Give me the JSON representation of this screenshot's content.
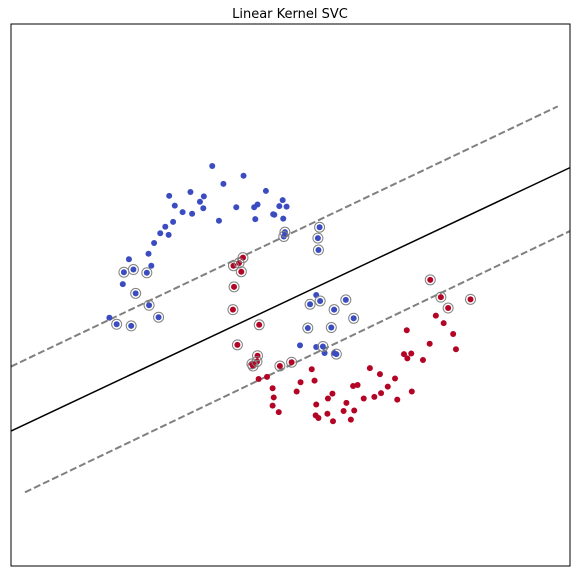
{
  "chart_data": {
    "type": "scatter",
    "title": "Linear Kernel SVC",
    "xlabel": "",
    "ylabel": "",
    "xlim": [
      0,
      100
    ],
    "ylim": [
      0,
      100
    ],
    "grid": false,
    "axes_ticks": false,
    "colors": {
      "class_0": "#3b4cc0",
      "class_1": "#b40426",
      "decision_boundary": "#000000",
      "margin": "#808080",
      "support_vector_ring": "#808080"
    },
    "series": [
      {
        "class": 0,
        "points": [
          [
            36.0,
            73.8
          ],
          [
            41.6,
            72.0
          ],
          [
            38.0,
            70.5
          ],
          [
            45.6,
            69.2
          ],
          [
            32.1,
            69.0
          ],
          [
            28.3,
            68.3
          ],
          [
            34.5,
            68.2
          ],
          [
            33.8,
            67.2
          ],
          [
            44.1,
            66.7
          ],
          [
            48.6,
            67.5
          ],
          [
            29.3,
            66.5
          ],
          [
            32.4,
            65.0
          ],
          [
            34.4,
            66.0
          ],
          [
            48.0,
            66.4
          ],
          [
            40.3,
            66.2
          ],
          [
            43.5,
            66.2
          ],
          [
            30.7,
            65.3
          ],
          [
            29.0,
            63.5
          ],
          [
            37.2,
            63.7
          ],
          [
            49.3,
            66.3
          ],
          [
            47.1,
            64.8
          ],
          [
            46.9,
            64.9
          ],
          [
            43.7,
            64.0
          ],
          [
            48.7,
            64.1
          ],
          [
            27.6,
            62.6
          ],
          [
            26.7,
            61.4
          ],
          [
            28.2,
            61.1
          ],
          [
            49.0,
            61.6
          ],
          [
            55.2,
            62.5
          ],
          [
            48.8,
            60.8
          ],
          [
            25.6,
            59.6
          ],
          [
            21.1,
            56.6
          ],
          [
            25.1,
            55.4
          ],
          [
            54.9,
            60.5
          ],
          [
            24.6,
            57.6
          ],
          [
            55.0,
            58.3
          ],
          [
            24.3,
            54.1
          ],
          [
            21.9,
            54.7
          ],
          [
            20.2,
            54.2
          ],
          [
            22.3,
            50.3
          ],
          [
            20.0,
            52.0
          ],
          [
            17.6,
            45.8
          ],
          [
            18.9,
            44.6
          ],
          [
            24.7,
            48.1
          ],
          [
            21.5,
            44.3
          ],
          [
            26.4,
            45.9
          ],
          [
            54.6,
            50.0
          ],
          [
            55.3,
            48.9
          ],
          [
            57.8,
            47.3
          ],
          [
            59.9,
            49.1
          ],
          [
            53.5,
            48.3
          ],
          [
            61.3,
            45.7
          ],
          [
            57.3,
            44.0
          ],
          [
            53.1,
            43.9
          ],
          [
            54.6,
            40.4
          ],
          [
            51.7,
            40.7
          ],
          [
            56.1,
            39.3
          ],
          [
            57.8,
            39.3
          ],
          [
            58.2,
            39.1
          ],
          [
            55.8,
            40.5
          ]
        ],
        "support_vectors": [
          [
            55.2,
            62.5
          ],
          [
            48.8,
            60.8
          ],
          [
            55.0,
            58.3
          ],
          [
            54.9,
            60.5
          ],
          [
            49.0,
            61.6
          ],
          [
            53.5,
            48.3
          ],
          [
            55.3,
            48.9
          ],
          [
            57.8,
            47.3
          ],
          [
            59.9,
            49.1
          ],
          [
            61.3,
            45.7
          ],
          [
            57.3,
            44.0
          ],
          [
            53.1,
            43.9
          ],
          [
            58.2,
            39.1
          ],
          [
            55.8,
            40.5
          ],
          [
            24.7,
            48.1
          ],
          [
            26.4,
            45.9
          ],
          [
            22.3,
            50.3
          ],
          [
            21.9,
            54.7
          ],
          [
            20.2,
            54.2
          ],
          [
            24.3,
            54.1
          ],
          [
            21.5,
            44.3
          ],
          [
            18.9,
            44.6
          ]
        ]
      },
      {
        "class": 1,
        "points": [
          [
            75.0,
            52.8
          ],
          [
            41.5,
            56.9
          ],
          [
            40.8,
            55.9
          ],
          [
            39.8,
            55.4
          ],
          [
            41.2,
            54.3
          ],
          [
            76.9,
            49.6
          ],
          [
            82.2,
            49.2
          ],
          [
            78.2,
            47.6
          ],
          [
            39.9,
            51.5
          ],
          [
            39.7,
            47.3
          ],
          [
            44.4,
            44.5
          ],
          [
            76.0,
            46.2
          ],
          [
            77.4,
            44.8
          ],
          [
            70.8,
            43.5
          ],
          [
            79.1,
            42.8
          ],
          [
            74.9,
            41.0
          ],
          [
            40.5,
            40.8
          ],
          [
            44.1,
            38.8
          ],
          [
            79.6,
            40.0
          ],
          [
            71.6,
            39.2
          ],
          [
            70.3,
            39.1
          ],
          [
            44.0,
            37.7
          ],
          [
            43.1,
            37.3
          ],
          [
            70.9,
            38.3
          ],
          [
            73.7,
            38.0
          ],
          [
            48.1,
            36.9
          ],
          [
            50.2,
            37.6
          ],
          [
            43.3,
            36.9
          ],
          [
            64.2,
            36.5
          ],
          [
            53.8,
            36.3
          ],
          [
            66.0,
            35.4
          ],
          [
            44.3,
            34.5
          ],
          [
            45.8,
            34.9
          ],
          [
            68.7,
            34.6
          ],
          [
            51.8,
            33.9
          ],
          [
            54.3,
            34.2
          ],
          [
            61.2,
            33.2
          ],
          [
            62.0,
            33.4
          ],
          [
            67.4,
            33.1
          ],
          [
            66.2,
            31.9
          ],
          [
            57.5,
            31.8
          ],
          [
            51.1,
            32.2
          ],
          [
            46.8,
            32.8
          ],
          [
            71.7,
            32.2
          ],
          [
            63.1,
            30.9
          ],
          [
            65.0,
            31.2
          ],
          [
            69.1,
            30.7
          ],
          [
            47.0,
            31.1
          ],
          [
            56.7,
            30.9
          ],
          [
            60.0,
            30.1
          ],
          [
            54.6,
            29.8
          ],
          [
            47.9,
            28.4
          ],
          [
            61.4,
            28.7
          ],
          [
            46.8,
            29.6
          ],
          [
            56.6,
            28.1
          ],
          [
            54.5,
            27.8
          ],
          [
            59.5,
            28.6
          ],
          [
            60.8,
            27.0
          ],
          [
            55.0,
            27.3
          ],
          [
            57.6,
            26.7
          ]
        ],
        "support_vectors": [
          [
            75.0,
            52.8
          ],
          [
            41.5,
            56.9
          ],
          [
            40.8,
            55.9
          ],
          [
            39.8,
            55.4
          ],
          [
            41.2,
            54.3
          ],
          [
            76.9,
            49.6
          ],
          [
            82.2,
            49.2
          ],
          [
            78.2,
            47.6
          ],
          [
            39.9,
            51.5
          ],
          [
            39.7,
            47.3
          ],
          [
            44.4,
            44.5
          ],
          [
            40.5,
            40.8
          ],
          [
            44.1,
            38.8
          ],
          [
            44.0,
            37.7
          ],
          [
            43.1,
            37.3
          ],
          [
            48.1,
            36.9
          ],
          [
            50.2,
            37.6
          ],
          [
            43.3,
            36.9
          ]
        ]
      }
    ],
    "lines": [
      {
        "role": "decision_boundary",
        "style": "solid",
        "points": [
          [
            0,
            24.9
          ],
          [
            100,
            73.5
          ]
        ]
      },
      {
        "role": "margin_upper",
        "style": "dashed",
        "points": [
          [
            0,
            36.8
          ],
          [
            97.8,
            84.8
          ]
        ]
      },
      {
        "role": "margin_lower",
        "style": "dashed",
        "points": [
          [
            2.5,
            13.6
          ],
          [
            100,
            61.8
          ]
        ]
      }
    ]
  }
}
